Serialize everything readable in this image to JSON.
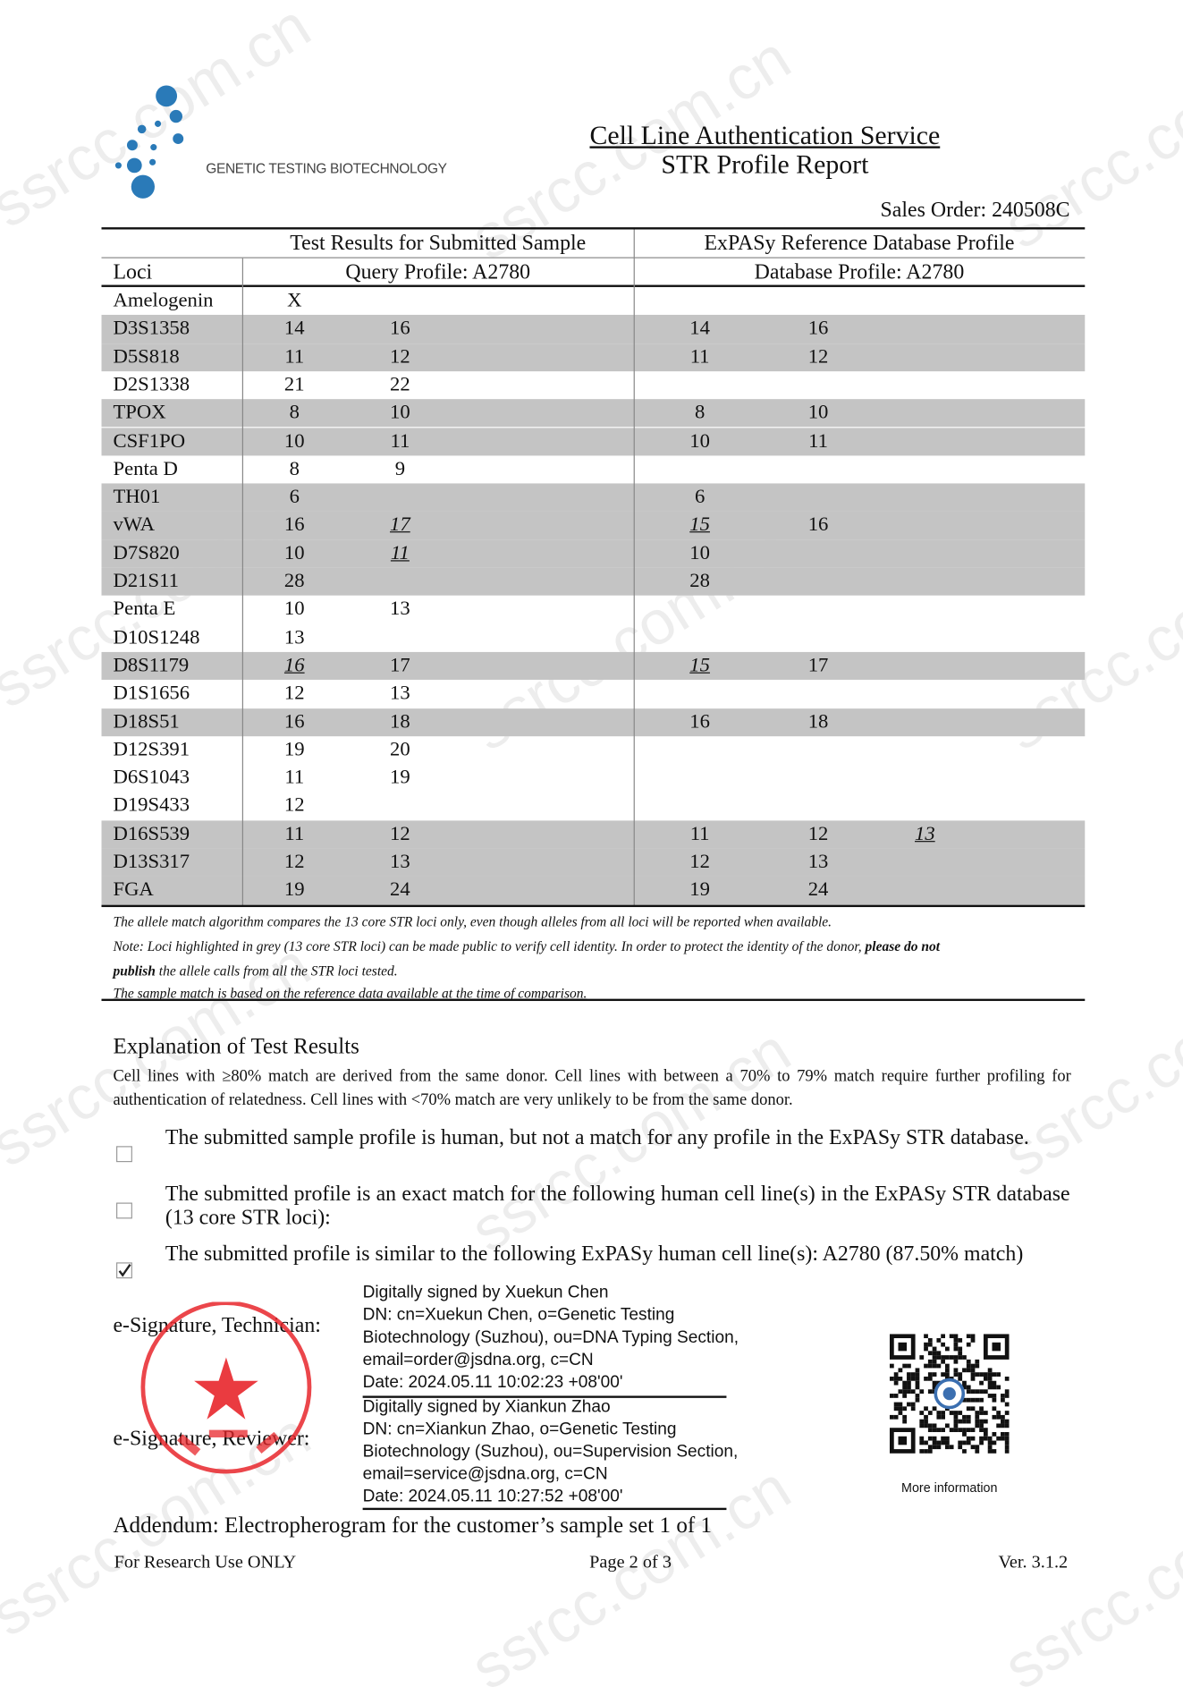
{
  "watermark": "ssrcc.com.cn",
  "header": {
    "company": "GENETIC TESTING BIOTECHNOLOGY",
    "title": "Cell Line Authentication Service",
    "subtitle": "STR Profile Report",
    "sales_order": "Sales Order: 240508C",
    "logo_color": "#2a7ab8"
  },
  "table": {
    "group_left": "Test Results for Submitted Sample",
    "group_right": "ExPASy Reference Database Profile",
    "col_loci": "Loci",
    "col_query": "Query Profile: A2780",
    "col_db": "Database Profile: A2780",
    "highlight_color": "#c4c4c4",
    "rows": [
      {
        "locus": "Amelogenin",
        "grey": false,
        "query": [
          {
            "v": "X"
          }
        ],
        "db": []
      },
      {
        "locus": "D3S1358",
        "grey": true,
        "query": [
          {
            "v": "14"
          },
          {
            "v": "16"
          }
        ],
        "db": [
          {
            "v": "14"
          },
          {
            "v": "16"
          }
        ]
      },
      {
        "locus": "D5S818",
        "grey": true,
        "query": [
          {
            "v": "11"
          },
          {
            "v": "12"
          }
        ],
        "db": [
          {
            "v": "11"
          },
          {
            "v": "12"
          }
        ]
      },
      {
        "locus": "D2S1338",
        "grey": false,
        "query": [
          {
            "v": "21"
          },
          {
            "v": "22"
          }
        ],
        "db": []
      },
      {
        "locus": "TPOX",
        "grey": true,
        "query": [
          {
            "v": "8"
          },
          {
            "v": "10"
          }
        ],
        "db": [
          {
            "v": "8"
          },
          {
            "v": "10"
          }
        ]
      },
      {
        "locus": "CSF1PO",
        "grey": true,
        "query": [
          {
            "v": "10"
          },
          {
            "v": "11"
          }
        ],
        "db": [
          {
            "v": "10"
          },
          {
            "v": "11"
          }
        ]
      },
      {
        "locus": "Penta D",
        "grey": false,
        "query": [
          {
            "v": "8"
          },
          {
            "v": "9"
          }
        ],
        "db": []
      },
      {
        "locus": "TH01",
        "grey": true,
        "query": [
          {
            "v": "6"
          }
        ],
        "db": [
          {
            "v": "6"
          }
        ]
      },
      {
        "locus": "vWA",
        "grey": true,
        "query": [
          {
            "v": "16"
          },
          {
            "v": "17",
            "mismatch": true
          }
        ],
        "db": [
          {
            "v": "15",
            "mismatch": true
          },
          {
            "v": "16"
          }
        ]
      },
      {
        "locus": "D7S820",
        "grey": true,
        "query": [
          {
            "v": "10"
          },
          {
            "v": "11",
            "mismatch": true
          }
        ],
        "db": [
          {
            "v": "10"
          }
        ]
      },
      {
        "locus": "D21S11",
        "grey": true,
        "query": [
          {
            "v": "28"
          }
        ],
        "db": [
          {
            "v": "28"
          }
        ]
      },
      {
        "locus": "Penta E",
        "grey": false,
        "query": [
          {
            "v": "10"
          },
          {
            "v": "13"
          }
        ],
        "db": []
      },
      {
        "locus": "D10S1248",
        "grey": false,
        "query": [
          {
            "v": "13"
          }
        ],
        "db": []
      },
      {
        "locus": "D8S1179",
        "grey": true,
        "query": [
          {
            "v": "16",
            "mismatch": true
          },
          {
            "v": "17"
          }
        ],
        "db": [
          {
            "v": "15",
            "mismatch": true
          },
          {
            "v": "17"
          }
        ]
      },
      {
        "locus": "D1S1656",
        "grey": false,
        "query": [
          {
            "v": "12"
          },
          {
            "v": "13"
          }
        ],
        "db": []
      },
      {
        "locus": "D18S51",
        "grey": true,
        "query": [
          {
            "v": "16"
          },
          {
            "v": "18"
          }
        ],
        "db": [
          {
            "v": "16"
          },
          {
            "v": "18"
          }
        ]
      },
      {
        "locus": "D12S391",
        "grey": false,
        "query": [
          {
            "v": "19"
          },
          {
            "v": "20"
          }
        ],
        "db": []
      },
      {
        "locus": "D6S1043",
        "grey": false,
        "query": [
          {
            "v": "11"
          },
          {
            "v": "19"
          }
        ],
        "db": []
      },
      {
        "locus": "D19S433",
        "grey": false,
        "query": [
          {
            "v": "12"
          }
        ],
        "db": []
      },
      {
        "locus": "D16S539",
        "grey": true,
        "query": [
          {
            "v": "11"
          },
          {
            "v": "12"
          }
        ],
        "db": [
          {
            "v": "11"
          },
          {
            "v": "12"
          },
          {
            "v": "13",
            "mismatch": true
          }
        ]
      },
      {
        "locus": "D13S317",
        "grey": true,
        "query": [
          {
            "v": "12"
          },
          {
            "v": "13"
          }
        ],
        "db": [
          {
            "v": "12"
          },
          {
            "v": "13"
          }
        ]
      },
      {
        "locus": "FGA",
        "grey": true,
        "query": [
          {
            "v": "19"
          },
          {
            "v": "24"
          }
        ],
        "db": [
          {
            "v": "19"
          },
          {
            "v": "24"
          }
        ]
      }
    ]
  },
  "notes": {
    "line1": "The allele match algorithm compares the 13 core STR loci only, even though alleles from all loci will be reported when available.",
    "line2a": "Note: Loci highlighted in grey (13 core STR loci) can be made public to verify cell identity. In order to protect the identity of the donor, ",
    "line2b": "please do not",
    "line3a": "publish",
    "line3b": " the allele calls from all the STR loci tested.",
    "line4": "The sample match is based on the reference data available at the time of comparison."
  },
  "explanation": {
    "heading": "Explanation of Test Results",
    "body": "Cell lines with ≥80% match are derived from the same donor. Cell lines with between a 70% to 79% match require further profiling for authentication of relatedness. Cell lines with <70% match are very unlikely to be from the same donor.",
    "options": [
      {
        "text": "The submitted sample profile is human, but not a match for any profile in the ExPASy STR database.",
        "checked": false
      },
      {
        "text": "The submitted profile is an exact match for the following human cell line(s) in the ExPASy STR database (13 core STR loci):",
        "checked": false
      },
      {
        "text": "The submitted profile is similar to the following ExPASy human cell line(s): A2780 (87.50% match)",
        "checked": true
      }
    ]
  },
  "signatures": {
    "technician_label": "e-Signature, Technician:",
    "reviewer_label": "e-Signature, Reviewer:",
    "technician": [
      "Digitally signed by Xuekun Chen",
      "DN: cn=Xuekun Chen, o=Genetic Testing",
      "Biotechnology (Suzhou), ou=DNA Typing Section,",
      "email=order@jsdna.org, c=CN",
      "Date: 2024.05.11 10:02:23 +08'00'"
    ],
    "reviewer": [
      "Digitally signed by Xiankun Zhao",
      "DN: cn=Xiankun Zhao, o=Genetic Testing",
      "Biotechnology (Suzhou), ou=Supervision Section,",
      "email=service@jsdna.org, c=CN",
      "Date: 2024.05.11 10:27:52 +08'00'"
    ],
    "stamp_color": "#e8262b"
  },
  "qr": {
    "label": "More information"
  },
  "addendum": {
    "label": "Addendum:",
    "text": " Electropherogram for the customer’s sample set 1 of 1"
  },
  "footer": {
    "left": "For Research Use ONLY",
    "center": "Page 2 of 3",
    "right": "Ver. 3.1.2"
  }
}
